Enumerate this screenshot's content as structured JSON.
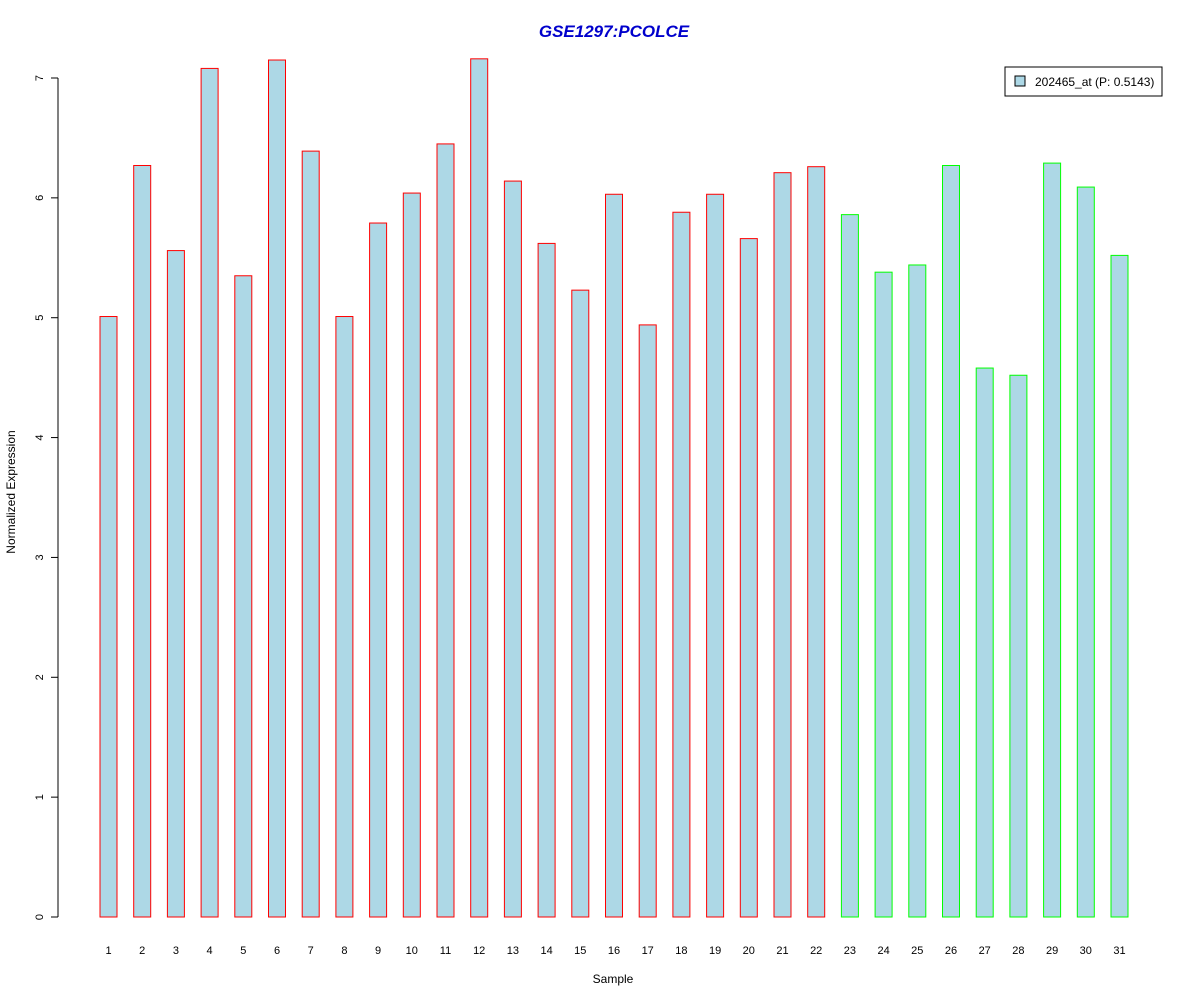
{
  "chart_data": {
    "type": "bar",
    "title": "GSE1297:PCOLCE",
    "xlabel": "Sample",
    "ylabel": "Normalized Expression",
    "ylim": [
      0,
      7
    ],
    "yticks": [
      0,
      1,
      2,
      3,
      4,
      5,
      6,
      7
    ],
    "categories": [
      "1",
      "2",
      "3",
      "4",
      "5",
      "6",
      "7",
      "8",
      "9",
      "10",
      "11",
      "12",
      "13",
      "14",
      "15",
      "16",
      "17",
      "18",
      "19",
      "20",
      "21",
      "22",
      "23",
      "24",
      "25",
      "26",
      "27",
      "28",
      "29",
      "30",
      "31"
    ],
    "series": [
      {
        "name": "202465_at (P: 0.5143)",
        "values": [
          5.01,
          6.27,
          5.56,
          7.08,
          5.35,
          7.15,
          6.39,
          5.01,
          5.79,
          6.04,
          6.45,
          7.16,
          6.14,
          5.62,
          5.23,
          6.03,
          4.94,
          5.88,
          6.03,
          5.66,
          6.21,
          6.26,
          5.86,
          5.38,
          5.44,
          6.27,
          4.58,
          4.52,
          6.29,
          6.09,
          5.52
        ]
      }
    ],
    "bar_groups": [
      "red",
      "red",
      "red",
      "red",
      "red",
      "red",
      "red",
      "red",
      "red",
      "red",
      "red",
      "red",
      "red",
      "red",
      "red",
      "red",
      "red",
      "red",
      "red",
      "red",
      "red",
      "red",
      "green",
      "green",
      "green",
      "green",
      "green",
      "green",
      "green",
      "green",
      "green"
    ],
    "grid": false,
    "legend_position": "top-right",
    "colors": {
      "fill": "#add8e6",
      "red": "#ff0000",
      "green": "#00ff00",
      "title": "#0000cc",
      "axis": "#000000"
    }
  }
}
